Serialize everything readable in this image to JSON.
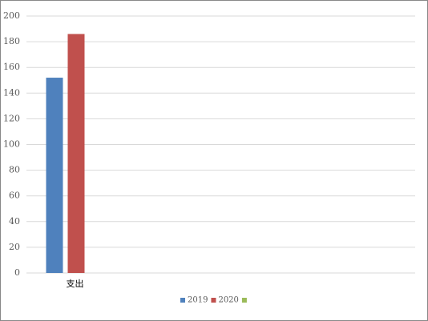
{
  "chart_data": {
    "type": "bar",
    "categories": [
      "支出",
      null,
      null,
      null,
      null
    ],
    "series": [
      {
        "name": "2019",
        "color": "#4f81bd",
        "values": [
          152,
          null,
          null,
          null,
          null
        ]
      },
      {
        "name": "2020",
        "color": "#c0504d",
        "values": [
          186,
          null,
          null,
          null,
          null
        ]
      },
      {
        "color": "#9bbb59",
        "values": [
          null,
          null,
          null,
          null,
          null
        ]
      }
    ],
    "ylim": [
      0,
      200
    ],
    "yticks": [
      0,
      20,
      40,
      60,
      80,
      100,
      120,
      140,
      160,
      180,
      200
    ],
    "grid": true
  }
}
